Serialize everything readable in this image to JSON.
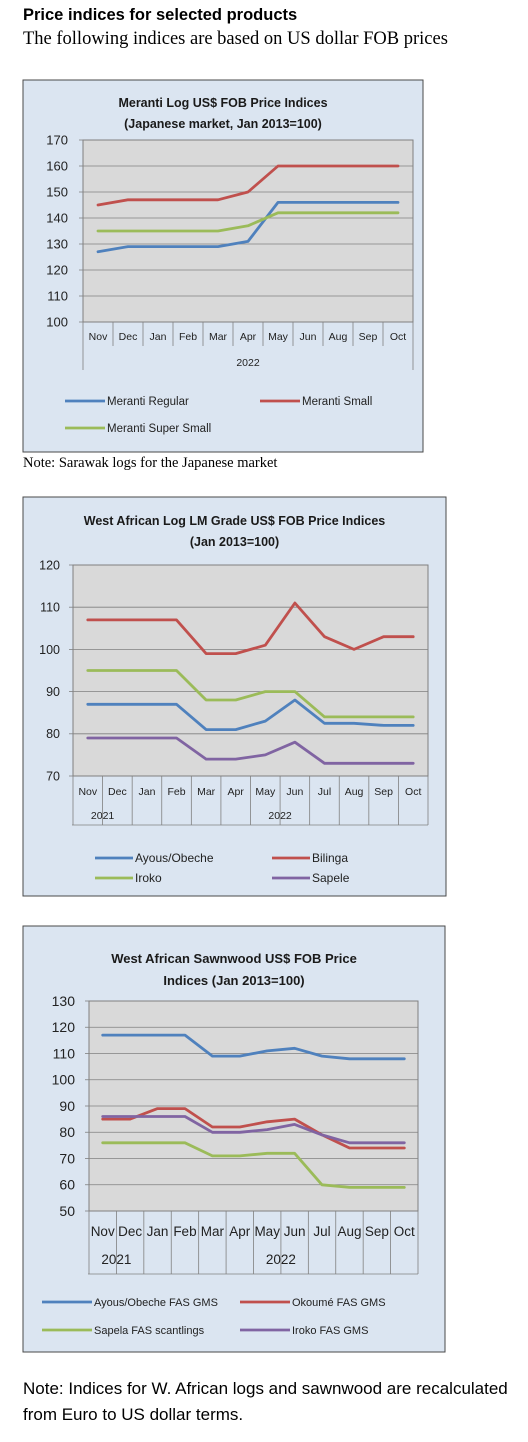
{
  "page": {
    "heading": "Price indices for selected products",
    "subheading": "The following indices are based on US dollar FOB prices",
    "note1": "Note: Sarawak logs for the Japanese market",
    "note3": "Note: Indices for W. African logs and sawnwood are recalculated from Euro to US dollar terms."
  },
  "chart_data": [
    {
      "type": "line",
      "title": "Meranti Log US$ FOB Price Indices",
      "subtitle": "(Japanese market, Jan 2013=100)",
      "categories": [
        "Nov",
        "Dec",
        "Jan",
        "Feb",
        "Mar",
        "Apr",
        "May",
        "Jun",
        "Aug",
        "Sep",
        "Oct"
      ],
      "year_labels": [
        {
          "label": "2022",
          "from": 0,
          "to": 10
        }
      ],
      "ylim": [
        100,
        170
      ],
      "yticks": [
        100,
        110,
        120,
        130,
        140,
        150,
        160,
        170
      ],
      "grid": true,
      "legend_position": "bottom",
      "series": [
        {
          "name": "Meranti Regular",
          "color": "#4f81bd",
          "values": [
            127,
            129,
            129,
            129,
            129,
            131,
            146,
            146,
            146,
            146,
            146
          ]
        },
        {
          "name": "Meranti Small",
          "color": "#c0504d",
          "values": [
            145,
            147,
            147,
            147,
            147,
            150,
            160,
            160,
            160,
            160,
            160
          ]
        },
        {
          "name": "Meranti Super Small",
          "color": "#9bbb59",
          "values": [
            135,
            135,
            135,
            135,
            135,
            137,
            142,
            142,
            142,
            142,
            142
          ]
        }
      ]
    },
    {
      "type": "line",
      "title": "West African Log LM Grade US$ FOB Price Indices",
      "subtitle": "(Jan 2013=100)",
      "categories": [
        "Nov",
        "Dec",
        "Jan",
        "Feb",
        "Mar",
        "Apr",
        "May",
        "Jun",
        "Jul",
        "Aug",
        "Sep",
        "Oct"
      ],
      "year_labels": [
        {
          "label": "2021",
          "from": 0,
          "to": 1
        },
        {
          "label": "2022",
          "from": 2,
          "to": 11
        }
      ],
      "ylim": [
        70,
        120
      ],
      "yticks": [
        70,
        80,
        90,
        100,
        110,
        120
      ],
      "grid": true,
      "legend_position": "bottom",
      "series": [
        {
          "name": "Ayous/Obeche",
          "color": "#4f81bd",
          "values": [
            87,
            87,
            87,
            87,
            81,
            81,
            83,
            88,
            82.5,
            82.5,
            82,
            82
          ]
        },
        {
          "name": "Bilinga",
          "color": "#c0504d",
          "values": [
            107,
            107,
            107,
            107,
            99,
            99,
            101,
            111,
            103,
            100,
            103,
            103
          ]
        },
        {
          "name": "Iroko",
          "color": "#9bbb59",
          "values": [
            95,
            95,
            95,
            95,
            88,
            88,
            90,
            90,
            84,
            84,
            84,
            84
          ]
        },
        {
          "name": "Sapele",
          "color": "#8064a2",
          "values": [
            79,
            79,
            79,
            79,
            74,
            74,
            75,
            78,
            73,
            73,
            73,
            73
          ]
        }
      ]
    },
    {
      "type": "line",
      "title": "West African Sawnwood US$ FOB Price",
      "subtitle": "Indices (Jan 2013=100)",
      "categories": [
        "Nov",
        "Dec",
        "Jan",
        "Feb",
        "Mar",
        "Apr",
        "May",
        "Jun",
        "Jul",
        "Aug",
        "Sep",
        "Oct"
      ],
      "year_labels": [
        {
          "label": "2021",
          "from": 0,
          "to": 1
        },
        {
          "label": "2022",
          "from": 2,
          "to": 11
        }
      ],
      "ylim": [
        50,
        130
      ],
      "yticks": [
        50,
        60,
        70,
        80,
        90,
        100,
        110,
        120,
        130
      ],
      "grid": true,
      "legend_position": "bottom",
      "series": [
        {
          "name": "Ayous/Obeche  FAS GMS",
          "color": "#4f81bd",
          "values": [
            117,
            117,
            117,
            117,
            109,
            109,
            111,
            112,
            109,
            108,
            108,
            108
          ]
        },
        {
          "name": "Okoumé  FAS GMS",
          "color": "#c0504d",
          "values": [
            85,
            85,
            89,
            89,
            82,
            82,
            84,
            85,
            79,
            74,
            74,
            74
          ]
        },
        {
          "name": "Sapela FAS scantlings",
          "color": "#9bbb59",
          "values": [
            76,
            76,
            76,
            76,
            71,
            71,
            72,
            72,
            60,
            59,
            59,
            59
          ]
        },
        {
          "name": "Iroko FAS GMS",
          "color": "#8064a2",
          "values": [
            86,
            86,
            86,
            86,
            80,
            80,
            81,
            83,
            79,
            76,
            76,
            76
          ]
        }
      ]
    }
  ]
}
